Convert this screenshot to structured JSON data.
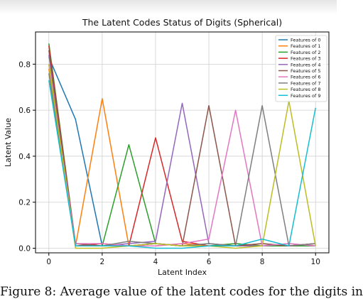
{
  "caption": "Figure 8: Average value of the latent codes for the digits in",
  "chart_data": {
    "type": "line",
    "title": "The Latent Codes Status of Digits (Spherical)",
    "xlabel": "Latent Index",
    "ylabel": "Latent Value",
    "xlim": [
      -0.5,
      10.5
    ],
    "ylim": [
      -0.02,
      0.94
    ],
    "xticks": [
      0,
      2,
      4,
      6,
      8,
      10
    ],
    "yticks": [
      0.0,
      0.2,
      0.4,
      0.6,
      0.8
    ],
    "grid": true,
    "legend_position": "top-right",
    "x": [
      0,
      1,
      2,
      3,
      4,
      5,
      6,
      7,
      8,
      9,
      10
    ],
    "series": [
      {
        "name": "Features of 0",
        "color": "#1f77b4",
        "values": [
          0.83,
          0.56,
          0.01,
          0.01,
          0.02,
          0.01,
          0.02,
          0.01,
          0.01,
          0.01,
          0.02
        ]
      },
      {
        "name": "Features of 1",
        "color": "#ff7f0e",
        "values": [
          0.78,
          0.01,
          0.65,
          0.01,
          0.01,
          0.02,
          0.01,
          0.02,
          0.01,
          0.01,
          0.02
        ]
      },
      {
        "name": "Features of 2",
        "color": "#2ca02c",
        "values": [
          0.89,
          0.02,
          0.01,
          0.45,
          0.02,
          0.01,
          0.01,
          0.02,
          0.01,
          0.01,
          0.01
        ]
      },
      {
        "name": "Features of 3",
        "color": "#d62728",
        "values": [
          0.88,
          0.01,
          0.02,
          0.01,
          0.48,
          0.03,
          0.01,
          0.01,
          0.02,
          0.01,
          0.02
        ]
      },
      {
        "name": "Features of 4",
        "color": "#9467bd",
        "values": [
          0.84,
          0.01,
          0.01,
          0.02,
          0.03,
          0.63,
          0.02,
          0.01,
          0.01,
          0.02,
          0.01
        ]
      },
      {
        "name": "Features of 5",
        "color": "#8c564b",
        "values": [
          0.86,
          0.02,
          0.01,
          0.01,
          0.02,
          0.01,
          0.62,
          0.01,
          0.02,
          0.01,
          0.02
        ]
      },
      {
        "name": "Features of 6",
        "color": "#e377c2",
        "values": [
          0.8,
          0.02,
          0.02,
          0.01,
          0.01,
          0.02,
          0.04,
          0.6,
          0.01,
          0.02,
          0.01
        ]
      },
      {
        "name": "Features of 7",
        "color": "#7f7f7f",
        "values": [
          0.76,
          0.01,
          0.01,
          0.03,
          0.02,
          0.01,
          0.02,
          0.01,
          0.62,
          0.01,
          0.02
        ]
      },
      {
        "name": "Features of 8",
        "color": "#bcbd22",
        "values": [
          0.8,
          0.0,
          0.0,
          0.01,
          0.02,
          0.01,
          0.01,
          0.0,
          0.01,
          0.64,
          0.01
        ]
      },
      {
        "name": "Features of 9",
        "color": "#17becf",
        "values": [
          0.73,
          0.01,
          0.01,
          0.01,
          0.0,
          0.0,
          0.01,
          0.01,
          0.04,
          0.01,
          0.61
        ]
      }
    ]
  }
}
